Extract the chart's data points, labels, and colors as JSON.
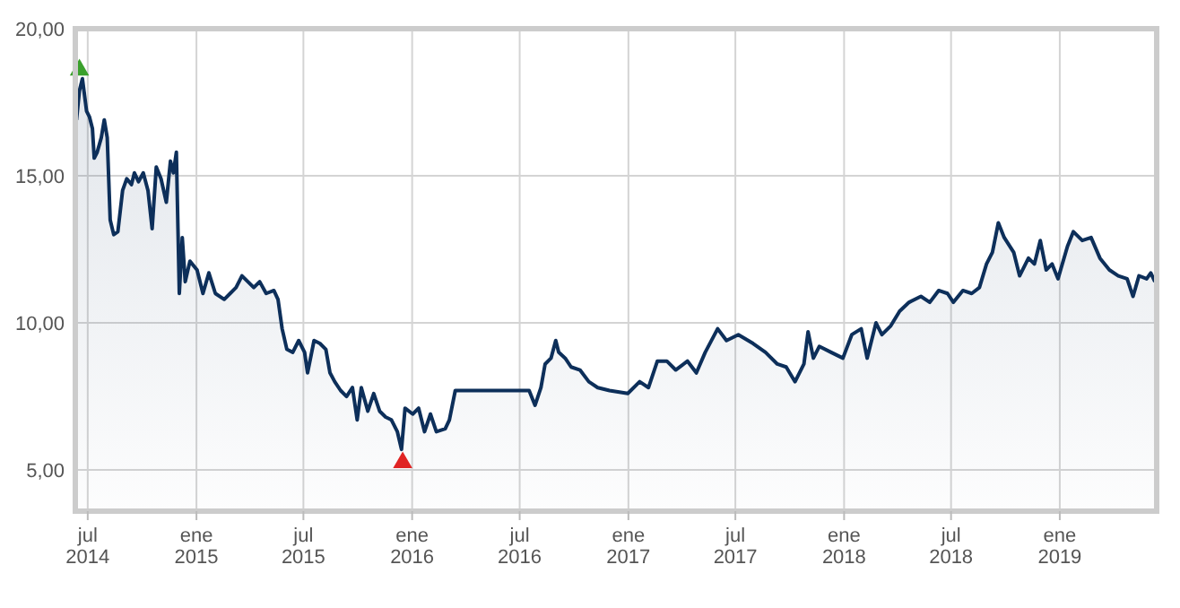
{
  "chart_data": {
    "type": "area",
    "grid": true,
    "marker": "none",
    "line_style": "solid",
    "xlim": [
      "2014-06-10",
      "2019-06-14"
    ],
    "ylim": [
      3.6,
      20
    ],
    "yticks": [
      {
        "value": 5,
        "label": "5,00"
      },
      {
        "value": 10,
        "label": "10,00"
      },
      {
        "value": 15,
        "label": "15,00"
      },
      {
        "value": 20,
        "label": "20,00"
      }
    ],
    "xticks": [
      {
        "value": "2014-07-01",
        "label": "jul 2014"
      },
      {
        "value": "2015-01-01",
        "label": "ene 2015"
      },
      {
        "value": "2015-07-01",
        "label": "jul 2015"
      },
      {
        "value": "2016-01-01",
        "label": "ene 2016"
      },
      {
        "value": "2016-07-01",
        "label": "jul 2016"
      },
      {
        "value": "2017-01-01",
        "label": "ene 2017"
      },
      {
        "value": "2017-07-01",
        "label": "jul 2017"
      },
      {
        "value": "2018-01-01",
        "label": "ene 2018"
      },
      {
        "value": "2018-07-01",
        "label": "jul 2018"
      },
      {
        "value": "2019-01-01",
        "label": "ene 2019"
      }
    ],
    "series": [
      {
        "color": "#0d2f5a",
        "x": [
          "2014-06-12",
          "2014-06-17",
          "2014-06-22",
          "2014-06-29",
          "2014-07-04",
          "2014-07-09",
          "2014-07-12",
          "2014-07-17",
          "2014-07-24",
          "2014-07-29",
          "2014-08-03",
          "2014-08-08",
          "2014-08-14",
          "2014-08-21",
          "2014-08-29",
          "2014-09-05",
          "2014-09-13",
          "2014-09-18",
          "2014-09-25",
          "2014-10-03",
          "2014-10-11",
          "2014-10-18",
          "2014-10-25",
          "2014-11-02",
          "2014-11-11",
          "2014-11-18",
          "2014-11-23",
          "2014-11-28",
          "2014-12-03",
          "2014-12-08",
          "2014-12-13",
          "2014-12-21",
          "2015-01-02",
          "2015-01-12",
          "2015-01-22",
          "2015-02-02",
          "2015-02-17",
          "2015-02-27",
          "2015-03-09",
          "2015-03-19",
          "2015-03-29",
          "2015-04-08",
          "2015-04-18",
          "2015-04-29",
          "2015-05-12",
          "2015-05-19",
          "2015-05-26",
          "2015-06-03",
          "2015-06-13",
          "2015-06-23",
          "2015-07-03",
          "2015-07-08",
          "2015-07-19",
          "2015-07-29",
          "2015-08-08",
          "2015-08-15",
          "2015-08-23",
          "2015-09-02",
          "2015-09-12",
          "2015-09-22",
          "2015-09-30",
          "2015-10-07",
          "2015-10-18",
          "2015-10-28",
          "2015-11-07",
          "2015-11-17",
          "2015-11-27",
          "2015-12-07",
          "2015-12-14",
          "2015-12-20",
          "2016-01-02",
          "2016-01-12",
          "2016-01-22",
          "2016-02-01",
          "2016-02-11",
          "2016-02-26",
          "2016-03-04",
          "2016-03-14",
          "2016-04-01",
          "2016-07-17",
          "2016-07-27",
          "2016-08-06",
          "2016-08-13",
          "2016-08-23",
          "2016-08-31",
          "2016-09-05",
          "2016-09-16",
          "2016-09-26",
          "2016-10-11",
          "2016-10-26",
          "2016-11-10",
          "2016-11-30",
          "2016-12-31",
          "2017-01-20",
          "2017-02-04",
          "2017-02-19",
          "2017-03-07",
          "2017-03-22",
          "2017-04-11",
          "2017-04-26",
          "2017-05-11",
          "2017-06-01",
          "2017-06-16",
          "2017-07-06",
          "2017-07-31",
          "2017-08-21",
          "2017-09-10",
          "2017-09-25",
          "2017-10-10",
          "2017-10-25",
          "2017-11-01",
          "2017-11-10",
          "2017-11-20",
          "2017-12-10",
          "2017-12-30",
          "2018-01-14",
          "2018-01-30",
          "2018-02-09",
          "2018-02-24",
          "2018-03-06",
          "2018-03-21",
          "2018-04-05",
          "2018-04-21",
          "2018-05-11",
          "2018-05-26",
          "2018-06-10",
          "2018-06-25",
          "2018-07-05",
          "2018-07-21",
          "2018-08-05",
          "2018-08-18",
          "2018-08-30",
          "2018-09-09",
          "2018-09-19",
          "2018-09-29",
          "2018-10-15",
          "2018-10-25",
          "2018-11-09",
          "2018-11-19",
          "2018-11-29",
          "2018-12-09",
          "2018-12-19",
          "2018-12-29",
          "2019-01-14",
          "2019-01-24",
          "2019-02-08",
          "2019-02-23",
          "2019-03-10",
          "2019-03-26",
          "2019-04-10",
          "2019-04-25",
          "2019-05-05",
          "2019-05-15",
          "2019-05-28",
          "2019-06-04",
          "2019-06-11"
        ],
        "values": [
          16.9,
          17.9,
          18.3,
          17.2,
          17.0,
          16.6,
          15.6,
          15.8,
          16.3,
          16.9,
          16.3,
          13.5,
          13.0,
          13.1,
          14.5,
          14.9,
          14.7,
          15.1,
          14.8,
          15.1,
          14.5,
          13.2,
          15.3,
          14.9,
          14.1,
          15.5,
          15.1,
          15.8,
          11.0,
          12.9,
          11.4,
          12.1,
          11.8,
          11.0,
          11.7,
          11.0,
          10.8,
          11.0,
          11.2,
          11.6,
          11.4,
          11.2,
          11.4,
          11.0,
          11.1,
          10.8,
          9.8,
          9.1,
          9.0,
          9.4,
          9.0,
          8.3,
          9.4,
          9.3,
          9.1,
          8.3,
          8.0,
          7.7,
          7.5,
          7.8,
          6.7,
          7.8,
          7.0,
          7.6,
          7.0,
          6.8,
          6.7,
          6.3,
          5.7,
          7.1,
          6.9,
          7.1,
          6.3,
          6.9,
          6.3,
          6.4,
          6.7,
          7.7,
          7.7,
          7.7,
          7.2,
          7.8,
          8.6,
          8.8,
          9.4,
          9.0,
          8.8,
          8.5,
          8.4,
          8.0,
          7.8,
          7.7,
          7.6,
          8.0,
          7.8,
          8.7,
          8.7,
          8.4,
          8.7,
          8.3,
          9.0,
          9.8,
          9.4,
          9.6,
          9.3,
          9.0,
          8.6,
          8.5,
          8.0,
          8.6,
          9.7,
          8.8,
          9.2,
          9.0,
          8.8,
          9.6,
          9.8,
          8.8,
          10.0,
          9.6,
          9.9,
          10.4,
          10.7,
          10.9,
          10.7,
          11.1,
          11.0,
          10.7,
          11.1,
          11.0,
          11.2,
          12.0,
          12.4,
          13.4,
          12.9,
          12.4,
          11.6,
          12.2,
          12.0,
          12.8,
          11.8,
          12.0,
          11.5,
          12.6,
          13.1,
          12.8,
          12.9,
          12.2,
          11.8,
          11.6,
          11.5,
          10.9,
          11.6,
          11.5,
          11.7,
          11.4
        ]
      },
      {
        "type": "scatter",
        "marker": "triangle",
        "color": "#3aa02c",
        "x": [
          "2014-06-17"
        ],
        "values": [
          18.6
        ]
      },
      {
        "type": "scatter",
        "marker": "triangle",
        "color": "#e02424",
        "x": [
          "2015-12-16"
        ],
        "values": [
          5.25
        ]
      }
    ]
  }
}
